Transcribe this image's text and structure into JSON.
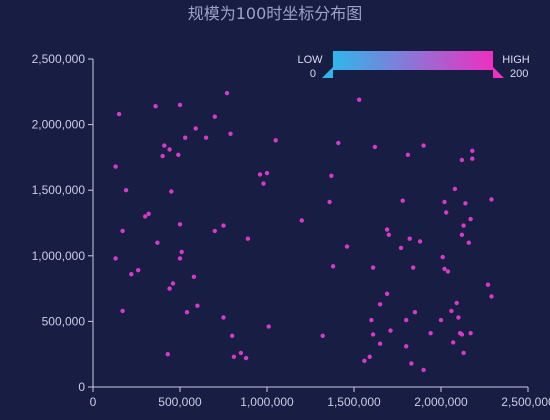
{
  "chart_data": {
    "type": "scatter",
    "title": "规模为100时坐标分布图",
    "xlabel": "",
    "ylabel": "",
    "xlim": [
      0,
      2500000
    ],
    "ylim": [
      0,
      2500000
    ],
    "x_ticks": [
      "0",
      "500,000",
      "1,000,000",
      "1,500,000",
      "2,000,000",
      "2,500,000"
    ],
    "y_ticks": [
      "0",
      "500,000",
      "1,000,000",
      "1,500,000",
      "2,000,000",
      "2,500,000"
    ],
    "grid": false,
    "point_color": "#d63ac8",
    "visual_map": {
      "low_label": "LOW",
      "high_label": "HIGH",
      "min": "0",
      "max": "200",
      "colors": [
        "#2fb7ea",
        "#ee2fc1"
      ]
    },
    "points": [
      [
        150000,
        2080000
      ],
      [
        360000,
        2140000
      ],
      [
        500000,
        2150000
      ],
      [
        770000,
        2240000
      ],
      [
        590000,
        1970000
      ],
      [
        700000,
        2060000
      ],
      [
        790000,
        1930000
      ],
      [
        650000,
        1900000
      ],
      [
        400000,
        1760000
      ],
      [
        410000,
        1840000
      ],
      [
        440000,
        1810000
      ],
      [
        490000,
        1770000
      ],
      [
        530000,
        1900000
      ],
      [
        1050000,
        1880000
      ],
      [
        1530000,
        2190000
      ],
      [
        1410000,
        1860000
      ],
      [
        1620000,
        1830000
      ],
      [
        1810000,
        1770000
      ],
      [
        1900000,
        1840000
      ],
      [
        2180000,
        1800000
      ],
      [
        2180000,
        1740000
      ],
      [
        2120000,
        1730000
      ],
      [
        2080000,
        1510000
      ],
      [
        2290000,
        1430000
      ],
      [
        130000,
        1680000
      ],
      [
        190000,
        1500000
      ],
      [
        300000,
        1300000
      ],
      [
        320000,
        1320000
      ],
      [
        450000,
        1490000
      ],
      [
        500000,
        1240000
      ],
      [
        960000,
        1620000
      ],
      [
        1000000,
        1630000
      ],
      [
        980000,
        1550000
      ],
      [
        1370000,
        1610000
      ],
      [
        1360000,
        1410000
      ],
      [
        1200000,
        1270000
      ],
      [
        1780000,
        1420000
      ],
      [
        2020000,
        1410000
      ],
      [
        2030000,
        1330000
      ],
      [
        2140000,
        1400000
      ],
      [
        2170000,
        1280000
      ],
      [
        2130000,
        1230000
      ],
      [
        2120000,
        1160000
      ],
      [
        2160000,
        1100000
      ],
      [
        170000,
        1190000
      ],
      [
        370000,
        1100000
      ],
      [
        700000,
        1190000
      ],
      [
        750000,
        1230000
      ],
      [
        890000,
        1130000
      ],
      [
        130000,
        980000
      ],
      [
        220000,
        860000
      ],
      [
        260000,
        890000
      ],
      [
        500000,
        980000
      ],
      [
        510000,
        1030000
      ],
      [
        580000,
        840000
      ],
      [
        440000,
        750000
      ],
      [
        460000,
        790000
      ],
      [
        600000,
        620000
      ],
      [
        540000,
        570000
      ],
      [
        750000,
        530000
      ],
      [
        800000,
        390000
      ],
      [
        810000,
        230000
      ],
      [
        850000,
        260000
      ],
      [
        880000,
        220000
      ],
      [
        1010000,
        460000
      ],
      [
        430000,
        250000
      ],
      [
        170000,
        580000
      ],
      [
        1380000,
        920000
      ],
      [
        1460000,
        1070000
      ],
      [
        1690000,
        1200000
      ],
      [
        1700000,
        1160000
      ],
      [
        1770000,
        1060000
      ],
      [
        1820000,
        1130000
      ],
      [
        1880000,
        1110000
      ],
      [
        1840000,
        910000
      ],
      [
        2010000,
        990000
      ],
      [
        2020000,
        900000
      ],
      [
        2040000,
        880000
      ],
      [
        1610000,
        910000
      ],
      [
        1650000,
        630000
      ],
      [
        1690000,
        710000
      ],
      [
        1600000,
        510000
      ],
      [
        1610000,
        400000
      ],
      [
        1650000,
        330000
      ],
      [
        1710000,
        430000
      ],
      [
        1800000,
        510000
      ],
      [
        1850000,
        570000
      ],
      [
        1800000,
        310000
      ],
      [
        1830000,
        180000
      ],
      [
        1900000,
        130000
      ],
      [
        1560000,
        200000
      ],
      [
        1590000,
        230000
      ],
      [
        1940000,
        410000
      ],
      [
        2000000,
        510000
      ],
      [
        2060000,
        580000
      ],
      [
        2090000,
        640000
      ],
      [
        2110000,
        410000
      ],
      [
        2100000,
        530000
      ],
      [
        2120000,
        400000
      ],
      [
        2130000,
        260000
      ],
      [
        2070000,
        340000
      ],
      [
        2170000,
        410000
      ],
      [
        2270000,
        780000
      ],
      [
        2290000,
        690000
      ],
      [
        1320000,
        390000
      ]
    ]
  }
}
